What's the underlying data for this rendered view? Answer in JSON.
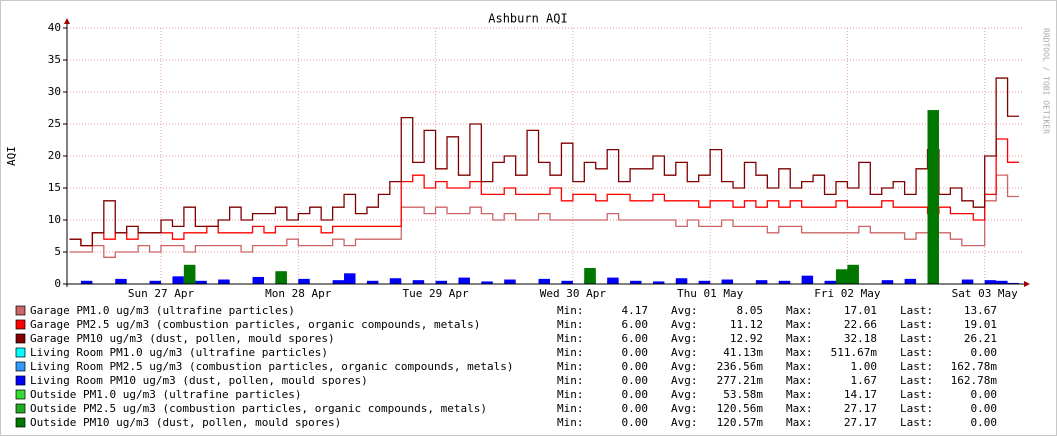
{
  "chart_data": {
    "type": "step",
    "title": "Ashburn AQI",
    "y_label": "AQI",
    "watermark": "RRDTOOL / TOBI OETIKER",
    "categories": [
      null,
      null,
      null,
      null,
      null,
      null,
      null,
      null,
      "Sun 27 Apr",
      null,
      null,
      null,
      null,
      null,
      null,
      null,
      null,
      null,
      null,
      null,
      "Mon 28 Apr",
      null,
      null,
      null,
      null,
      null,
      null,
      null,
      null,
      null,
      null,
      null,
      "Tue 29 Apr",
      null,
      null,
      null,
      null,
      null,
      null,
      null,
      null,
      null,
      null,
      null,
      "Wed 30 Apr",
      null,
      null,
      null,
      null,
      null,
      null,
      null,
      null,
      null,
      null,
      null,
      "Thu 01 May",
      null,
      null,
      null,
      null,
      null,
      null,
      null,
      null,
      null,
      null,
      null,
      "Fri 02 May",
      null,
      null,
      null,
      null,
      null,
      null,
      null,
      null,
      null,
      null,
      null,
      "Sat 03 May",
      null,
      null
    ],
    "ylim": [
      0,
      40
    ],
    "yticks": [
      0,
      5,
      10,
      15,
      20,
      25,
      30,
      35,
      40
    ],
    "grid": true,
    "stat_labels": [
      "Min:",
      "Avg:",
      "Max:",
      "Last:"
    ],
    "series": [
      {
        "name": "Garage PM1.0 ug/m3 (ultrafine particles)",
        "color": "#cc6666",
        "style": "line",
        "values": [
          5,
          5,
          6,
          4.17,
          5,
          5,
          6,
          5,
          6,
          6,
          5,
          6,
          6,
          6,
          6,
          5,
          6,
          6,
          6,
          7,
          6,
          6,
          6,
          7,
          6,
          7,
          7,
          7,
          7,
          12,
          12,
          11,
          12,
          11,
          11,
          12,
          11,
          10,
          11,
          10,
          10,
          11,
          10,
          10,
          10,
          10,
          10,
          11,
          10,
          10,
          10,
          10,
          10,
          9,
          10,
          9,
          9,
          10,
          9,
          9,
          9,
          8,
          9,
          9,
          8,
          8,
          8,
          8,
          8,
          9,
          8,
          8,
          8,
          7,
          8,
          8,
          8,
          7,
          6,
          6,
          13,
          17.01,
          13.67
        ],
        "stats": [
          "4.17",
          "8.05",
          "17.01",
          "13.67"
        ]
      },
      {
        "name": "Garage PM2.5 ug/m3 (combustion particles, organic compounds, metals)",
        "color": "#ff0000",
        "style": "line",
        "values": [
          7,
          6,
          8,
          7,
          8,
          7,
          8,
          8,
          8,
          7,
          8,
          8,
          9,
          8,
          8,
          8,
          9,
          8,
          9,
          9,
          9,
          9,
          8,
          9,
          9,
          9,
          9,
          9,
          9,
          16,
          17,
          15,
          16,
          15,
          15,
          16,
          14,
          14,
          15,
          14,
          14,
          14,
          15,
          13,
          14,
          14,
          13,
          14,
          14,
          13,
          13,
          14,
          13,
          13,
          13,
          12,
          13,
          13,
          12,
          13,
          12,
          13,
          12,
          13,
          12,
          12,
          12,
          13,
          12,
          12,
          12,
          13,
          12,
          12,
          12,
          11,
          12,
          11,
          11,
          10,
          14,
          22.66,
          19.01
        ],
        "stats": [
          "6.00",
          "11.12",
          "22.66",
          "19.01"
        ]
      },
      {
        "name": "Garage PM10 ug/m3 (dust, pollen, mould spores)",
        "color": "#800000",
        "style": "line",
        "values": [
          7,
          6,
          8,
          13,
          8,
          9,
          8,
          8,
          10,
          9,
          12,
          9,
          9,
          10,
          12,
          10,
          11,
          11,
          12,
          10,
          11,
          12,
          10,
          12,
          14,
          11,
          12,
          14,
          16,
          26,
          19,
          24,
          18,
          23,
          17,
          25,
          16,
          19,
          20,
          17,
          24,
          19,
          17,
          22,
          16,
          19,
          18,
          21,
          16,
          18,
          18,
          20,
          17,
          19,
          16,
          17,
          21,
          16,
          15,
          19,
          17,
          15,
          18,
          15,
          16,
          17,
          14,
          16,
          15,
          19,
          14,
          15,
          16,
          14,
          18,
          21,
          14,
          15,
          13,
          12,
          20,
          32.18,
          26.21
        ],
        "stats": [
          "6.00",
          "12.92",
          "32.18",
          "26.21"
        ]
      },
      {
        "name": "Living Room PM1.0 ug/m3 (ultrafine particles)",
        "color": "#00ffff",
        "style": "area",
        "values": [
          0,
          0,
          0,
          0,
          0.2,
          0,
          0,
          0,
          0,
          0.4,
          0,
          0,
          0,
          0,
          0,
          0,
          0.3,
          0,
          0,
          0,
          0,
          0,
          0,
          0,
          0.51167,
          0,
          0,
          0,
          0.2,
          0,
          0,
          0,
          0,
          0,
          0.3,
          0,
          0,
          0,
          0,
          0,
          0,
          0,
          0,
          0,
          0,
          0,
          0,
          0.3,
          0,
          0,
          0,
          0,
          0,
          0.2,
          0,
          0,
          0,
          0,
          0,
          0,
          0,
          0,
          0,
          0,
          0.4,
          0,
          0,
          0,
          0,
          0,
          0,
          0,
          0,
          0.2,
          0,
          0,
          0,
          0,
          0,
          0,
          0,
          0,
          0
        ],
        "stats": [
          "0.00",
          "41.13m",
          "511.67m",
          "0.00"
        ]
      },
      {
        "name": "Living Room PM2.5 ug/m3 (combustion particles, organic compounds, metals)",
        "color": "#3399ff",
        "style": "area",
        "values": [
          0,
          0.3,
          0,
          0,
          0.5,
          0,
          0,
          0.3,
          0,
          0.8,
          0,
          0.3,
          0,
          0.4,
          0,
          0,
          0.7,
          0,
          0.3,
          0,
          0.5,
          0,
          0,
          0.4,
          1,
          0,
          0.3,
          0,
          0.6,
          0,
          0.4,
          0,
          0.3,
          0,
          0.6,
          0,
          0.2,
          0,
          0.4,
          0,
          0,
          0.5,
          0,
          0.3,
          0,
          0.4,
          0,
          0.6,
          0,
          0.3,
          0,
          0.2,
          0,
          0.6,
          0,
          0.3,
          0,
          0.4,
          0,
          0,
          0.4,
          0,
          0.3,
          0,
          0.8,
          0,
          0.3,
          0,
          0.4,
          0,
          0,
          0.4,
          0,
          0.5,
          0,
          0.3,
          0,
          0,
          0.4,
          0,
          0.4,
          0.3,
          0.16278
        ],
        "stats": [
          "0.00",
          "236.56m",
          "1.00",
          "162.78m"
        ]
      },
      {
        "name": "Living Room PM10 ug/m3 (dust, pollen, mould spores)",
        "color": "#0000ff",
        "style": "area",
        "values": [
          0,
          0.5,
          0,
          0,
          0.8,
          0,
          0,
          0.5,
          0,
          1.2,
          0,
          0.5,
          0,
          0.7,
          0,
          0,
          1.1,
          0,
          0.5,
          0,
          0.8,
          0,
          0,
          0.6,
          1.67,
          0,
          0.5,
          0,
          0.9,
          0,
          0.6,
          0,
          0.5,
          0,
          1,
          0,
          0.4,
          0,
          0.7,
          0,
          0,
          0.8,
          0,
          0.5,
          0,
          0.6,
          0,
          1,
          0,
          0.5,
          0,
          0.4,
          0,
          0.9,
          0,
          0.5,
          0,
          0.7,
          0,
          0,
          0.6,
          0,
          0.5,
          0,
          1.3,
          0,
          0.5,
          0,
          0.7,
          0,
          0,
          0.6,
          0,
          0.8,
          0,
          0.5,
          0,
          0,
          0.7,
          0,
          0.6,
          0.5,
          0.16278
        ],
        "stats": [
          "0.00",
          "277.21m",
          "1.67",
          "162.78m"
        ]
      },
      {
        "name": "Outside PM1.0 ug/m3 (ultrafine particles)",
        "color": "#33dd33",
        "style": "area",
        "values": [
          0,
          0,
          0,
          0,
          0,
          0,
          0,
          0,
          0,
          0,
          1.5,
          0,
          0,
          0,
          0,
          0,
          0,
          0,
          1,
          0,
          0,
          0,
          0,
          0,
          0,
          0,
          0,
          0,
          0,
          0,
          0,
          0,
          0,
          0,
          0,
          0,
          0,
          0,
          0,
          0,
          0,
          0,
          0,
          0,
          0,
          1.2,
          0,
          0,
          0,
          0,
          0,
          0,
          0,
          0,
          0,
          0,
          0,
          0,
          0,
          0,
          0,
          0,
          0,
          0,
          0,
          0,
          0,
          1.2,
          1.5,
          0,
          0,
          0,
          0,
          0,
          0,
          14.17,
          0,
          0,
          0,
          0,
          0,
          0,
          0
        ],
        "stats": [
          "0.00",
          "53.58m",
          "14.17",
          "0.00"
        ]
      },
      {
        "name": "Outside PM2.5 ug/m3 (combustion particles, organic compounds, metals)",
        "color": "#22aa22",
        "style": "area",
        "values": [
          0,
          0,
          0,
          0,
          0,
          0,
          0,
          0,
          0,
          0,
          2.8,
          0,
          0,
          0,
          0,
          0,
          0,
          0,
          1.8,
          0,
          0,
          0,
          0,
          0,
          0,
          0,
          0,
          0,
          0,
          0,
          0,
          0,
          0,
          0,
          0,
          0,
          0,
          0,
          0,
          0,
          0,
          0,
          0,
          0,
          0,
          2.3,
          0,
          0,
          0,
          0,
          0,
          0,
          0,
          0,
          0,
          0,
          0,
          0,
          0,
          0,
          0,
          0,
          0,
          0,
          0,
          0,
          0,
          2.2,
          2.8,
          0,
          0,
          0,
          0,
          0,
          0,
          27.17,
          0,
          0,
          0,
          0,
          0,
          0,
          0
        ],
        "stats": [
          "0.00",
          "120.56m",
          "27.17",
          "0.00"
        ]
      },
      {
        "name": "Outside PM10 ug/m3 (dust, pollen, mould spores)",
        "color": "#007700",
        "style": "area",
        "values": [
          0,
          0,
          0,
          0,
          0,
          0,
          0,
          0,
          0,
          0,
          3,
          0,
          0,
          0,
          0,
          0,
          0,
          0,
          2,
          0,
          0,
          0,
          0,
          0,
          0,
          0,
          0,
          0,
          0,
          0,
          0,
          0,
          0,
          0,
          0,
          0,
          0,
          0,
          0,
          0,
          0,
          0,
          0,
          0,
          0,
          2.5,
          0,
          0,
          0,
          0,
          0,
          0,
          0,
          0,
          0,
          0,
          0,
          0,
          0,
          0,
          0,
          0,
          0,
          0,
          0,
          0,
          0,
          2.3,
          3,
          0,
          0,
          0,
          0,
          0,
          0,
          27.17,
          0,
          0,
          0,
          0,
          0,
          0,
          0
        ],
        "stats": [
          "0.00",
          "120.57m",
          "27.17",
          "0.00"
        ]
      }
    ]
  }
}
